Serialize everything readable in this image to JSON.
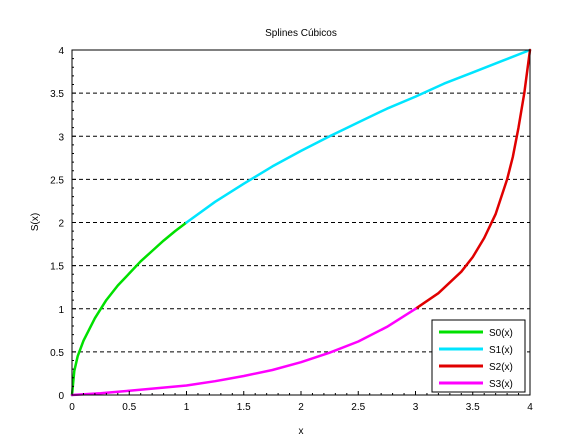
{
  "chart_data": {
    "type": "line",
    "title": "Splines Cúbicos",
    "xlabel": "x",
    "ylabel": "S(x)",
    "xlim": [
      0,
      4
    ],
    "ylim": [
      0,
      4
    ],
    "x_ticks": [
      "0",
      "0.5",
      "1",
      "1.5",
      "2",
      "2.5",
      "3",
      "3.5",
      "4"
    ],
    "y_ticks": [
      "0",
      "0.5",
      "1",
      "1.5",
      "2",
      "2.5",
      "3",
      "3.5",
      "4"
    ],
    "grid": "horizontal dashed",
    "legend_position": "bottom-right",
    "series": [
      {
        "name": "S0(x)",
        "color": "#00e000",
        "x": [
          0,
          0.02,
          0.05,
          0.1,
          0.2,
          0.3,
          0.4,
          0.5,
          0.6,
          0.7,
          0.8,
          0.9,
          1.0
        ],
        "y": [
          0,
          0.28,
          0.45,
          0.63,
          0.89,
          1.1,
          1.27,
          1.41,
          1.55,
          1.67,
          1.79,
          1.9,
          2.0
        ]
      },
      {
        "name": "S1(x)",
        "color": "#00e5ff",
        "x": [
          1.0,
          1.25,
          1.5,
          1.75,
          2.0,
          2.25,
          2.5,
          2.75,
          3.0,
          3.25,
          3.5,
          3.75,
          4.0
        ],
        "y": [
          2.0,
          2.24,
          2.45,
          2.65,
          2.83,
          3.0,
          3.16,
          3.32,
          3.46,
          3.61,
          3.74,
          3.87,
          4.0
        ]
      },
      {
        "name": "S2(x)",
        "color": "#e00000",
        "x": [
          3.0,
          3.2,
          3.4,
          3.5,
          3.6,
          3.7,
          3.8,
          3.85,
          3.9,
          3.95,
          3.98,
          4.0
        ],
        "y": [
          1.0,
          1.18,
          1.43,
          1.6,
          1.82,
          2.1,
          2.5,
          2.76,
          3.1,
          3.5,
          3.8,
          4.0
        ]
      },
      {
        "name": "S3(x)",
        "color": "#ff00ff",
        "x": [
          0,
          0.25,
          0.5,
          0.75,
          1.0,
          1.25,
          1.5,
          1.75,
          2.0,
          2.25,
          2.5,
          2.75,
          3.0
        ],
        "y": [
          0,
          0.02,
          0.05,
          0.08,
          0.11,
          0.16,
          0.22,
          0.29,
          0.38,
          0.49,
          0.62,
          0.79,
          1.0
        ]
      }
    ]
  }
}
